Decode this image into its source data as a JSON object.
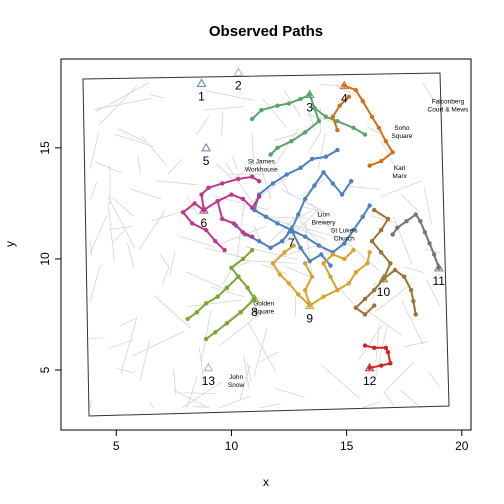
{
  "title": "Observed Paths",
  "axes": {
    "xlabel": "x",
    "ylabel": "y",
    "xlim": [
      2.6,
      20.4
    ],
    "ylim": [
      2.3,
      19.0
    ],
    "xticks": [
      5,
      10,
      15,
      20
    ],
    "yticks": [
      5,
      10,
      15
    ]
  },
  "landmarks": [
    {
      "lines": [
        "Falconberg",
        "Court & Mews"
      ],
      "x": 19.4,
      "y": 17.0
    },
    {
      "lines": [
        "Soho",
        "Square"
      ],
      "x": 17.4,
      "y": 15.8
    },
    {
      "lines": [
        "St James",
        "Workhouse"
      ],
      "x": 11.3,
      "y": 14.3
    },
    {
      "lines": [
        "Karl",
        "Marx"
      ],
      "x": 17.3,
      "y": 14.0
    },
    {
      "lines": [
        "Lion",
        "Brewery"
      ],
      "x": 14.0,
      "y": 11.9
    },
    {
      "lines": [
        "St Luke's",
        "Church"
      ],
      "x": 14.9,
      "y": 11.2
    },
    {
      "lines": [
        "Golden",
        "Square"
      ],
      "x": 11.4,
      "y": 7.9
    },
    {
      "lines": [
        "John",
        "Snow"
      ],
      "x": 10.2,
      "y": 4.6
    }
  ],
  "chart_data": {
    "type": "map",
    "title": "Observed Paths",
    "xlabel": "x",
    "ylabel": "y",
    "xlim": [
      2.6,
      20.4
    ],
    "ylim": [
      2.3,
      19.0
    ],
    "pumps": [
      {
        "id": "1",
        "x": 8.7,
        "y": 17.9,
        "color": "#4e7fbf"
      },
      {
        "id": "2",
        "x": 10.3,
        "y": 18.4,
        "color": "#b3b3b3"
      },
      {
        "id": "3",
        "x": 13.4,
        "y": 17.4,
        "color": "#5aa36f"
      },
      {
        "id": "4",
        "x": 14.9,
        "y": 17.8,
        "color": "#d26f1a"
      },
      {
        "id": "5",
        "x": 8.9,
        "y": 15.0,
        "color": "#7b6fb3"
      },
      {
        "id": "6",
        "x": 8.8,
        "y": 12.2,
        "color": "#c0378a"
      },
      {
        "id": "7",
        "x": 12.6,
        "y": 11.3,
        "color": "#4e7fbf"
      },
      {
        "id": "8",
        "x": 11.0,
        "y": 8.2,
        "color": "#7ba632"
      },
      {
        "id": "9",
        "x": 13.4,
        "y": 7.9,
        "color": "#d4a52a"
      },
      {
        "id": "10",
        "x": 16.6,
        "y": 9.1,
        "color": "#9a7430"
      },
      {
        "id": "11",
        "x": 19.0,
        "y": 9.6,
        "color": "#767676"
      },
      {
        "id": "12",
        "x": 16.0,
        "y": 5.1,
        "color": "#d92020"
      },
      {
        "id": "13",
        "x": 9.0,
        "y": 5.1,
        "color": "#b3b3b3"
      }
    ],
    "paths": [
      {
        "color": "#4e7fbf",
        "points": [
          [
            12.6,
            11.3
          ],
          [
            12.0,
            11.6
          ],
          [
            11.5,
            11.9
          ],
          [
            11.0,
            12.2
          ],
          [
            11.2,
            12.9
          ],
          [
            11.8,
            13.4
          ],
          [
            12.4,
            13.8
          ],
          [
            13.0,
            14.1
          ],
          [
            13.5,
            14.5
          ],
          [
            14.1,
            14.6
          ],
          [
            14.6,
            14.9
          ]
        ]
      },
      {
        "color": "#4e7fbf",
        "points": [
          [
            12.6,
            11.3
          ],
          [
            13.2,
            11.0
          ],
          [
            13.8,
            10.6
          ],
          [
            14.4,
            10.3
          ],
          [
            14.9,
            10.7
          ],
          [
            15.3,
            11.3
          ],
          [
            15.7,
            11.9
          ],
          [
            16.0,
            12.4
          ]
        ]
      },
      {
        "color": "#4e7fbf",
        "points": [
          [
            12.6,
            11.3
          ],
          [
            12.9,
            12.0
          ],
          [
            13.2,
            12.7
          ],
          [
            13.6,
            13.3
          ],
          [
            14.0,
            13.9
          ],
          [
            14.4,
            13.4
          ],
          [
            14.8,
            12.9
          ],
          [
            15.2,
            13.5
          ]
        ]
      },
      {
        "color": "#4e7fbf",
        "points": [
          [
            12.6,
            11.3
          ],
          [
            12.2,
            10.8
          ],
          [
            11.7,
            10.5
          ],
          [
            11.2,
            10.8
          ],
          [
            10.6,
            11.1
          ],
          [
            10.2,
            11.5
          ]
        ]
      },
      {
        "color": "#4e7fbf",
        "points": [
          [
            12.6,
            11.3
          ],
          [
            13.0,
            10.5
          ],
          [
            13.4,
            9.9
          ],
          [
            13.9,
            10.2
          ],
          [
            14.3,
            9.7
          ]
        ]
      },
      {
        "color": "#5aa36f",
        "points": [
          [
            13.4,
            17.4
          ],
          [
            13.0,
            17.2
          ],
          [
            12.5,
            17.0
          ],
          [
            12.0,
            16.9
          ],
          [
            11.3,
            16.7
          ],
          [
            10.9,
            16.3
          ]
        ]
      },
      {
        "color": "#5aa36f",
        "points": [
          [
            13.4,
            17.4
          ],
          [
            13.6,
            16.8
          ],
          [
            13.8,
            16.2
          ],
          [
            13.2,
            15.7
          ],
          [
            12.6,
            15.3
          ],
          [
            12.0,
            15.0
          ],
          [
            11.7,
            14.7
          ]
        ]
      },
      {
        "color": "#5aa36f",
        "points": [
          [
            13.6,
            16.8
          ],
          [
            14.1,
            16.4
          ],
          [
            14.6,
            16.2
          ],
          [
            15.3,
            15.9
          ],
          [
            15.8,
            15.6
          ]
        ]
      },
      {
        "color": "#d26f1a",
        "points": [
          [
            14.9,
            17.8
          ],
          [
            15.4,
            17.6
          ],
          [
            15.7,
            17.1
          ],
          [
            16.1,
            16.4
          ],
          [
            16.4,
            15.9
          ],
          [
            16.7,
            15.3
          ],
          [
            17.0,
            14.8
          ],
          [
            16.5,
            14.4
          ],
          [
            16.0,
            14.2
          ]
        ]
      },
      {
        "color": "#d26f1a",
        "points": [
          [
            15.1,
            17.3
          ],
          [
            14.7,
            16.9
          ],
          [
            14.4,
            16.4
          ],
          [
            14.6,
            15.8
          ]
        ]
      },
      {
        "color": "#c0378a",
        "points": [
          [
            8.8,
            12.2
          ],
          [
            8.4,
            12.5
          ],
          [
            7.9,
            12.1
          ],
          [
            8.3,
            11.6
          ],
          [
            8.9,
            11.3
          ],
          [
            9.3,
            10.8
          ],
          [
            9.7,
            10.4
          ]
        ]
      },
      {
        "color": "#c0378a",
        "points": [
          [
            8.8,
            12.2
          ],
          [
            9.4,
            12.6
          ],
          [
            10.0,
            12.9
          ],
          [
            10.5,
            12.7
          ],
          [
            10.9,
            12.3
          ],
          [
            11.2,
            12.8
          ]
        ]
      },
      {
        "color": "#c0378a",
        "points": [
          [
            8.8,
            12.2
          ],
          [
            8.7,
            12.9
          ],
          [
            9.0,
            13.2
          ],
          [
            9.6,
            13.4
          ],
          [
            10.3,
            13.6
          ],
          [
            10.9,
            13.7
          ],
          [
            11.2,
            13.5
          ]
        ]
      },
      {
        "color": "#c0378a",
        "points": [
          [
            9.4,
            12.6
          ],
          [
            9.6,
            11.8
          ],
          [
            10.1,
            11.6
          ],
          [
            10.5,
            11.2
          ],
          [
            10.9,
            11.0
          ]
        ]
      },
      {
        "color": "#7ba632",
        "points": [
          [
            11.0,
            8.2
          ],
          [
            10.7,
            8.7
          ],
          [
            10.3,
            9.2
          ],
          [
            10.0,
            9.6
          ],
          [
            10.5,
            10.0
          ],
          [
            10.9,
            10.4
          ]
        ]
      },
      {
        "color": "#7ba632",
        "points": [
          [
            10.3,
            9.2
          ],
          [
            9.8,
            8.7
          ],
          [
            9.4,
            8.3
          ],
          [
            8.9,
            8.0
          ],
          [
            8.5,
            7.6
          ],
          [
            8.1,
            7.3
          ]
        ]
      },
      {
        "color": "#7ba632",
        "points": [
          [
            11.0,
            8.2
          ],
          [
            10.4,
            7.6
          ],
          [
            9.8,
            7.1
          ],
          [
            9.3,
            6.7
          ],
          [
            8.9,
            6.4
          ]
        ]
      },
      {
        "color": "#d4a52a",
        "points": [
          [
            13.4,
            7.9
          ],
          [
            12.9,
            8.4
          ],
          [
            12.5,
            8.9
          ],
          [
            12.1,
            9.3
          ],
          [
            11.8,
            9.8
          ],
          [
            12.3,
            10.3
          ],
          [
            12.7,
            10.6
          ]
        ]
      },
      {
        "color": "#d4a52a",
        "points": [
          [
            13.4,
            7.9
          ],
          [
            14.0,
            8.3
          ],
          [
            14.6,
            8.6
          ],
          [
            15.1,
            8.9
          ],
          [
            15.4,
            9.4
          ],
          [
            15.9,
            9.8
          ],
          [
            16.0,
            10.3
          ]
        ]
      },
      {
        "color": "#d4a52a",
        "points": [
          [
            14.6,
            8.6
          ],
          [
            14.3,
            9.2
          ],
          [
            14.0,
            9.8
          ],
          [
            14.4,
            10.2
          ],
          [
            14.9,
            10.0
          ],
          [
            15.3,
            10.4
          ]
        ]
      },
      {
        "color": "#d4a52a",
        "points": [
          [
            13.4,
            7.9
          ],
          [
            13.2,
            8.6
          ],
          [
            13.5,
            9.2
          ],
          [
            13.2,
            9.8
          ]
        ]
      },
      {
        "color": "#9a7430",
        "points": [
          [
            16.6,
            9.1
          ],
          [
            16.2,
            8.6
          ],
          [
            15.8,
            8.2
          ],
          [
            15.4,
            7.8
          ],
          [
            15.8,
            7.5
          ],
          [
            16.2,
            7.9
          ]
        ]
      },
      {
        "color": "#9a7430",
        "points": [
          [
            16.6,
            9.1
          ],
          [
            17.1,
            9.5
          ],
          [
            17.5,
            9.2
          ],
          [
            17.8,
            8.6
          ],
          [
            17.9,
            8.1
          ],
          [
            18.0,
            7.5
          ]
        ]
      },
      {
        "color": "#9a7430",
        "points": [
          [
            16.6,
            9.1
          ],
          [
            16.9,
            9.8
          ],
          [
            16.5,
            10.3
          ],
          [
            16.1,
            10.8
          ],
          [
            16.5,
            11.3
          ],
          [
            16.8,
            11.8
          ],
          [
            16.2,
            12.2
          ]
        ]
      },
      {
        "color": "#767676",
        "points": [
          [
            19.0,
            9.6
          ],
          [
            18.8,
            10.2
          ],
          [
            18.6,
            10.7
          ],
          [
            18.4,
            11.2
          ],
          [
            18.2,
            11.7
          ],
          [
            18.0,
            12.0
          ],
          [
            17.6,
            11.7
          ],
          [
            17.2,
            11.4
          ],
          [
            17.0,
            11.1
          ]
        ]
      },
      {
        "color": "#d92020",
        "points": [
          [
            16.0,
            5.1
          ],
          [
            16.5,
            5.2
          ],
          [
            16.9,
            5.3
          ],
          [
            16.8,
            5.8
          ],
          [
            16.7,
            6.0
          ],
          [
            16.2,
            6.0
          ],
          [
            15.8,
            6.1
          ]
        ]
      }
    ]
  }
}
